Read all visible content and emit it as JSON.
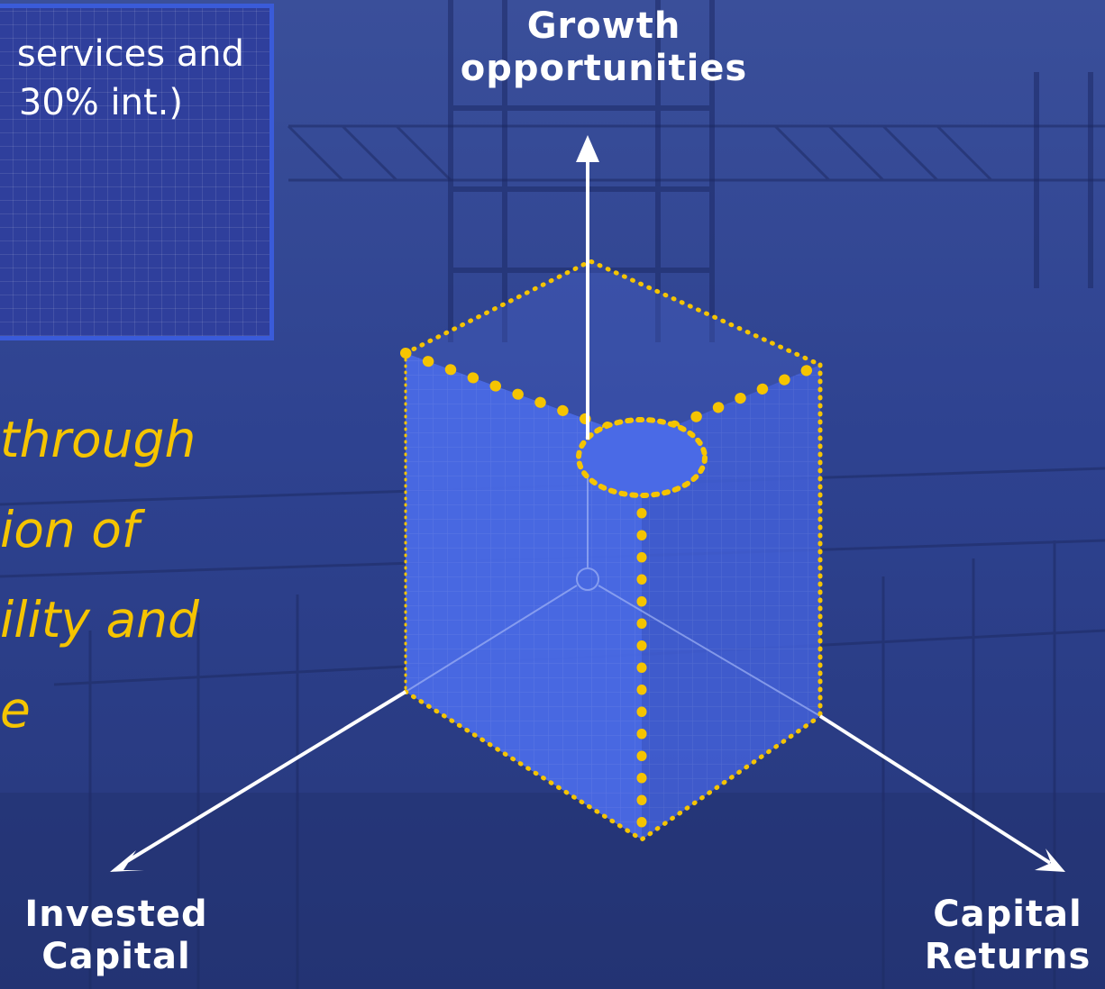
{
  "info_box": {
    "line1": "services and",
    "line2": "30% int.)"
  },
  "tagline": {
    "line1": "through",
    "line2": "ion of",
    "line3": "ility and",
    "line4": "e"
  },
  "axes": {
    "top": {
      "line1": "Growth",
      "line2": "opportunities"
    },
    "left": {
      "line1": "Invested",
      "line2": "Capital"
    },
    "right": {
      "line1": "Capital",
      "line2": "Returns"
    }
  },
  "colors": {
    "background": "#2b3f86",
    "box_fill": "#4a6ae6",
    "dots": "#f5c400",
    "tagline": "#f5c400",
    "text": "#ffffff"
  }
}
